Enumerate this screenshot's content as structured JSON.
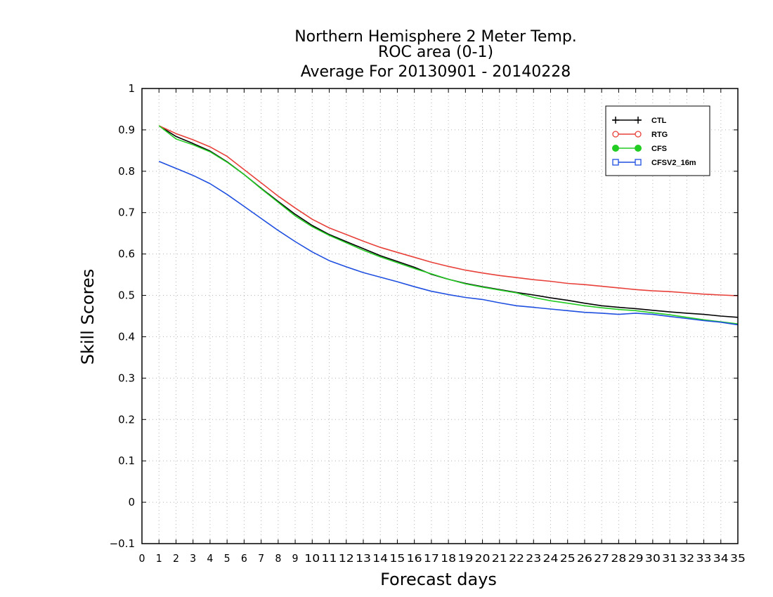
{
  "chart_data": {
    "type": "line",
    "title": [
      "Northern Hemisphere 2 Meter Temp.",
      "ROC area (0-1)",
      "Average For 20130901 - 20140228"
    ],
    "xlabel": "Forecast days",
    "ylabel": "Skill Scores",
    "xlim": [
      0,
      35
    ],
    "ylim": [
      -0.1,
      1
    ],
    "x_ticks": [
      0,
      1,
      2,
      3,
      4,
      5,
      6,
      7,
      8,
      9,
      10,
      11,
      12,
      13,
      14,
      15,
      16,
      17,
      18,
      19,
      20,
      21,
      22,
      23,
      24,
      25,
      26,
      27,
      28,
      29,
      30,
      31,
      32,
      33,
      34,
      35
    ],
    "y_ticks": [
      -0.1,
      0,
      0.1,
      0.2,
      0.3,
      0.4,
      0.5,
      0.6,
      0.7,
      0.8,
      0.9,
      1
    ],
    "y_tick_labels": [
      "−0.1",
      "0",
      "0.1",
      "0.2",
      "0.3",
      "0.4",
      "0.5",
      "0.6",
      "0.7",
      "0.8",
      "0.9",
      "1"
    ],
    "grid": true,
    "legend_position": "top-right",
    "x": [
      1,
      2,
      3,
      4,
      5,
      6,
      7,
      8,
      9,
      10,
      11,
      12,
      13,
      14,
      15,
      16,
      17,
      18,
      19,
      20,
      21,
      22,
      23,
      24,
      25,
      26,
      27,
      28,
      29,
      30,
      31,
      32,
      33,
      34,
      35
    ],
    "series": [
      {
        "name": "CTL",
        "color": "#000000",
        "marker": "plus",
        "values": [
          0.91,
          0.884,
          0.867,
          0.849,
          0.823,
          0.792,
          0.759,
          0.727,
          0.696,
          0.669,
          0.647,
          0.63,
          0.613,
          0.596,
          0.582,
          0.568,
          0.551,
          0.539,
          0.529,
          0.521,
          0.514,
          0.507,
          0.501,
          0.494,
          0.488,
          0.481,
          0.475,
          0.471,
          0.468,
          0.464,
          0.46,
          0.457,
          0.454,
          0.45,
          0.447
        ]
      },
      {
        "name": "RTG",
        "color": "#e8413a",
        "marker": "circle-open",
        "values": [
          0.91,
          0.891,
          0.876,
          0.859,
          0.836,
          0.804,
          0.772,
          0.74,
          0.711,
          0.684,
          0.663,
          0.647,
          0.631,
          0.616,
          0.604,
          0.592,
          0.58,
          0.57,
          0.561,
          0.554,
          0.548,
          0.543,
          0.538,
          0.534,
          0.529,
          0.526,
          0.522,
          0.518,
          0.514,
          0.511,
          0.509,
          0.506,
          0.503,
          0.501,
          0.499
        ]
      },
      {
        "name": "CFS",
        "color": "#22cc22",
        "marker": "circle-filled",
        "values": [
          0.91,
          0.878,
          0.864,
          0.847,
          0.822,
          0.792,
          0.758,
          0.725,
          0.692,
          0.666,
          0.645,
          0.627,
          0.609,
          0.593,
          0.579,
          0.565,
          0.552,
          0.539,
          0.528,
          0.52,
          0.513,
          0.506,
          0.495,
          0.487,
          0.481,
          0.475,
          0.47,
          0.466,
          0.463,
          0.458,
          0.453,
          0.447,
          0.441,
          0.436,
          0.431
        ]
      },
      {
        "name": "CFSV2_16m",
        "color": "#1f4fe0",
        "marker": "square-open",
        "values": [
          0.824,
          0.807,
          0.79,
          0.77,
          0.744,
          0.715,
          0.686,
          0.657,
          0.63,
          0.605,
          0.584,
          0.569,
          0.555,
          0.544,
          0.533,
          0.521,
          0.51,
          0.502,
          0.495,
          0.49,
          0.482,
          0.475,
          0.471,
          0.467,
          0.463,
          0.459,
          0.457,
          0.454,
          0.457,
          0.454,
          0.449,
          0.444,
          0.439,
          0.435,
          0.429
        ]
      }
    ]
  }
}
